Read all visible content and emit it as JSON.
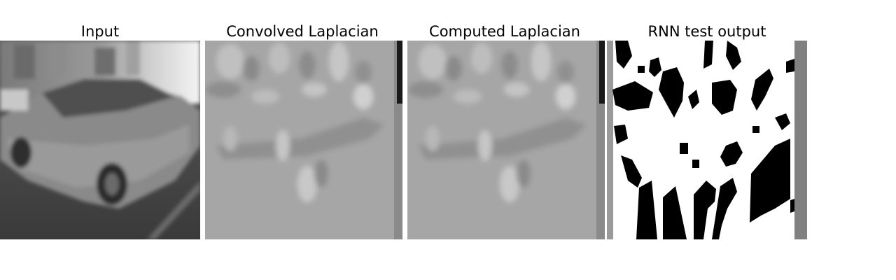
{
  "panels": [
    {
      "title": "Input",
      "image": "grayscale-car-image"
    },
    {
      "title": "Convolved Laplacian",
      "image": "laplacian-gray-map"
    },
    {
      "title": "Computed Laplacian",
      "image": "laplacian-gray-map"
    },
    {
      "title": "RNN test output",
      "image": "binary-black-white-map"
    }
  ],
  "colors": {
    "background": "#ffffff",
    "laplacian_base": "#a6a6a6",
    "rnn_black": "#000000",
    "rnn_white": "#ffffff",
    "rnn_edge_gray": "#808080"
  }
}
